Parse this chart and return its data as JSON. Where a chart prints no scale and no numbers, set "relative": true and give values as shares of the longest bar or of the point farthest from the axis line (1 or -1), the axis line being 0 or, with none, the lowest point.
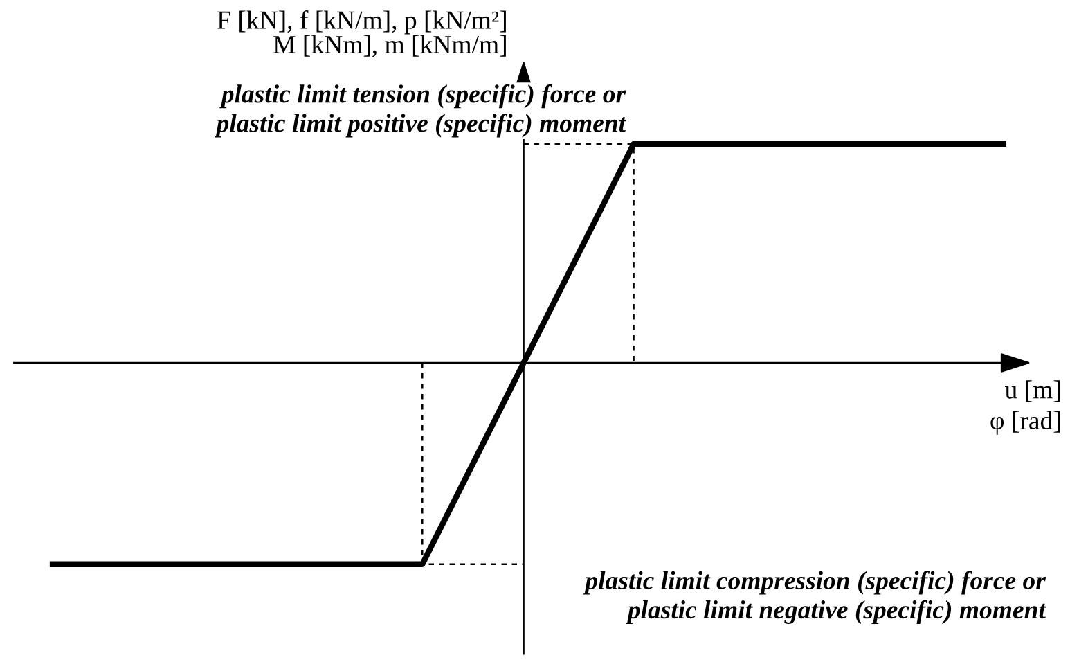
{
  "chart_data": {
    "type": "line",
    "relative": true,
    "xlabel": "u [m]\nφ [rad]",
    "ylabel": "F [kN], f [kN/m], p [kN/m²]\nM [kNm], m [kNm/m]",
    "annotations": [
      "plastic limit tension (specific) force or\nplastic limit positive (specific) moment",
      "plastic limit compression (specific) force or\nplastic limit negative (specific) moment"
    ],
    "categories": [
      null,
      null,
      null,
      null,
      null,
      null,
      null,
      null,
      null,
      null,
      null,
      null,
      null,
      null,
      null,
      null,
      null,
      null,
      null
    ],
    "series": [
      {
        "color": "#000000",
        "values": [
          -0.92,
          -0.92,
          -0.92,
          -0.92,
          -0.92,
          -0.92,
          -0.92,
          -0.92,
          -0.44,
          0.04,
          0.52,
          1,
          1,
          1,
          1,
          1,
          1,
          1,
          1
        ]
      }
    ],
    "legend": false,
    "marker": "none",
    "line_style": "solid"
  }
}
